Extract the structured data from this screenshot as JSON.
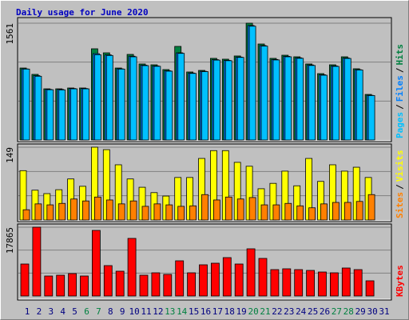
{
  "title": "Daily usage for June 2020",
  "categories": [
    "1",
    "2",
    "3",
    "4",
    "5",
    "6",
    "7",
    "8",
    "9",
    "10",
    "11",
    "12",
    "13",
    "14",
    "15",
    "16",
    "17",
    "18",
    "19",
    "20",
    "21",
    "22",
    "23",
    "24",
    "25",
    "26",
    "27",
    "28",
    "29",
    "30",
    "31"
  ],
  "weekend_categories": [
    "6",
    "7",
    "13",
    "14",
    "20",
    "21",
    "27",
    "28"
  ],
  "label_color": "#000080",
  "weekend_label_color": "#008040",
  "legend_separator": "/",
  "chart_data": [
    {
      "type": "bar",
      "ylim": [
        0,
        1561
      ],
      "yticks": [
        1561
      ],
      "grid_divisions": 3,
      "series": [
        {
          "name": "Hits",
          "color": "#008040",
          "values": [
            962,
            877,
            684,
            684,
            695,
            695,
            1219,
            1165,
            962,
            1144,
            1016,
            1005,
            941,
            1251,
            909,
            930,
            1091,
            1080,
            1123,
            1561,
            1283,
            1091,
            1133,
            1112,
            1016,
            887,
            1005,
            1112,
            952,
            609,
            null
          ]
        },
        {
          "name": "Files",
          "color": "#0080ff",
          "values": [
            950,
            860,
            676,
            676,
            688,
            688,
            1154,
            1138,
            951,
            1120,
            1000,
            990,
            925,
            1165,
            895,
            918,
            1074,
            1064,
            1108,
            1530,
            1262,
            1076,
            1118,
            1098,
            1003,
            872,
            990,
            1096,
            940,
            597,
            null
          ]
        },
        {
          "name": "Pages",
          "color": "#00c0ff",
          "values": [
            948,
            852,
            672,
            670,
            684,
            684,
            1140,
            1130,
            948,
            1112,
            994,
            985,
            920,
            1158,
            890,
            914,
            1068,
            1060,
            1104,
            1521,
            1255,
            1070,
            1112,
            1092,
            996,
            866,
            984,
            1090,
            936,
            594,
            null
          ]
        }
      ]
    },
    {
      "type": "bar",
      "ylim": [
        0,
        149
      ],
      "yticks": [
        149
      ],
      "grid_divisions": 3,
      "series": [
        {
          "name": "Visits",
          "color": "#ffff00",
          "values": [
            101,
            61,
            54,
            62,
            84,
            69,
            149,
            144,
            113,
            84,
            67,
            56,
            49,
            87,
            87,
            126,
            142,
            142,
            118,
            110,
            64,
            75,
            100,
            70,
            126,
            79,
            113,
            100,
            108,
            87,
            null
          ]
        },
        {
          "name": "Sites",
          "color": "#ff8000",
          "values": [
            21,
            33,
            31,
            34,
            43,
            39,
            47,
            41,
            33,
            39,
            28,
            33,
            31,
            28,
            29,
            52,
            41,
            47,
            43,
            46,
            31,
            31,
            34,
            29,
            25,
            33,
            36,
            36,
            38,
            52,
            null
          ]
        }
      ]
    },
    {
      "type": "bar",
      "ylim": [
        0,
        17865
      ],
      "yticks": [
        17865
      ],
      "grid_divisions": 3,
      "series": [
        {
          "name": "KBytes",
          "color": "#ff0000",
          "values": [
            8309,
            17865,
            5193,
            5401,
            5817,
            5193,
            17034,
            7894,
            6440,
            14957,
            5401,
            6024,
            5609,
            9140,
            6024,
            8102,
            8517,
            9971,
            8309,
            12256,
            9763,
            6855,
            7063,
            6855,
            6647,
            6232,
            6024,
            7271,
            6855,
            3947,
            null
          ]
        }
      ]
    }
  ]
}
